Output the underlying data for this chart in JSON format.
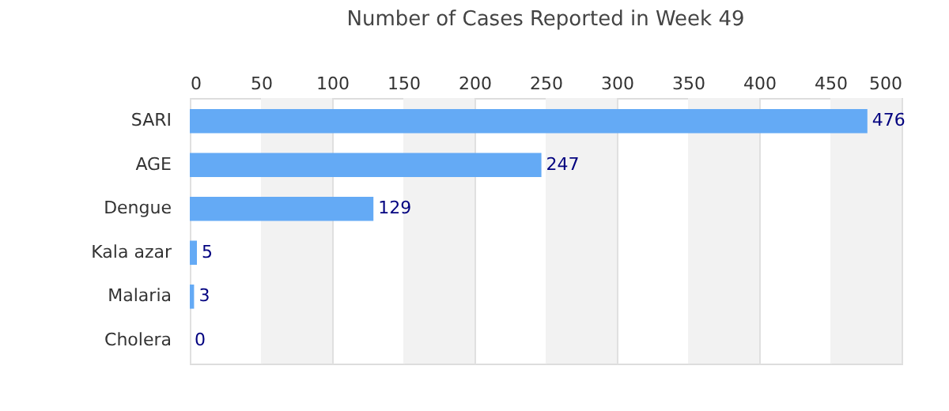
{
  "chart_data": {
    "type": "bar",
    "orientation": "horizontal",
    "title": "Number of Cases Reported in Week 49",
    "categories": [
      "SARI",
      "AGE",
      "Dengue",
      "Kala azar",
      "Malaria",
      "Cholera"
    ],
    "values": [
      476,
      247,
      129,
      5,
      3,
      0
    ],
    "color": "#64aaf5",
    "xlim": [
      0,
      500
    ],
    "xticks": [
      0,
      50,
      100,
      150,
      200,
      250,
      300,
      350,
      400,
      450,
      500
    ],
    "grid": "x",
    "data_labels": true,
    "bands": [
      {
        "axis": "x",
        "from": 50,
        "to": 100,
        "color": "#f2f2f2"
      },
      {
        "axis": "x",
        "from": 150,
        "to": 200,
        "color": "#f2f2f2"
      },
      {
        "axis": "x",
        "from": 250,
        "to": 300,
        "color": "#f2f2f2"
      },
      {
        "axis": "x",
        "from": 350,
        "to": 400,
        "color": "#f2f2f2"
      },
      {
        "axis": "x",
        "from": 450,
        "to": 500,
        "color": "#f2f2f2"
      }
    ]
  }
}
